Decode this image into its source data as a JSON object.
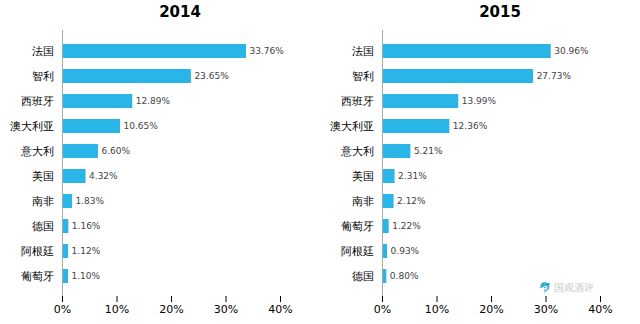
{
  "chart_data": [
    {
      "type": "bar",
      "orientation": "horizontal",
      "title": "2014",
      "categories": [
        "法国",
        "智利",
        "西班牙",
        "澳大利亚",
        "意大利",
        "美国",
        "南非",
        "德国",
        "阿根廷",
        "葡萄牙"
      ],
      "values": [
        33.76,
        23.65,
        12.89,
        10.65,
        6.6,
        4.32,
        1.83,
        1.16,
        1.12,
        1.1
      ],
      "value_labels": [
        "33.76%",
        "23.65%",
        "12.89%",
        "10.65%",
        "6.60%",
        "4.32%",
        "1.83%",
        "1.16%",
        "1.12%",
        "1.10%"
      ],
      "data_labels": true,
      "color": "#29B5E8",
      "xlim": [
        0,
        40
      ],
      "xticks": [
        {
          "value": 0,
          "label": "0%"
        },
        {
          "value": 10,
          "label": "10%"
        },
        {
          "value": 20,
          "label": "20%"
        },
        {
          "value": 30,
          "label": "30%"
        },
        {
          "value": 40,
          "label": "40%"
        }
      ],
      "grid": false
    },
    {
      "type": "bar",
      "orientation": "horizontal",
      "title": "2015",
      "categories": [
        "法国",
        "智利",
        "西班牙",
        "澳大利亚",
        "意大利",
        "美国",
        "南非",
        "葡萄牙",
        "阿根廷",
        "德国"
      ],
      "values": [
        30.96,
        27.73,
        13.99,
        12.36,
        5.21,
        2.31,
        2.12,
        1.22,
        0.93,
        0.8
      ],
      "value_labels": [
        "30.96%",
        "27.73%",
        "13.99%",
        "12.36%",
        "5.21%",
        "2.31%",
        "2.12%",
        "1.22%",
        "0.93%",
        "0.80%"
      ],
      "data_labels": true,
      "color": "#29B5E8",
      "xlim": [
        0,
        40
      ],
      "xticks": [
        {
          "value": 0,
          "label": "0%"
        },
        {
          "value": 10,
          "label": "10%"
        },
        {
          "value": 20,
          "label": "20%"
        },
        {
          "value": 30,
          "label": "30%"
        },
        {
          "value": 40,
          "label": "40%"
        }
      ],
      "grid": false,
      "annotations": [
        {
          "text": "🐬 国观酒评",
          "color": "#c8c8c8"
        }
      ]
    }
  ]
}
